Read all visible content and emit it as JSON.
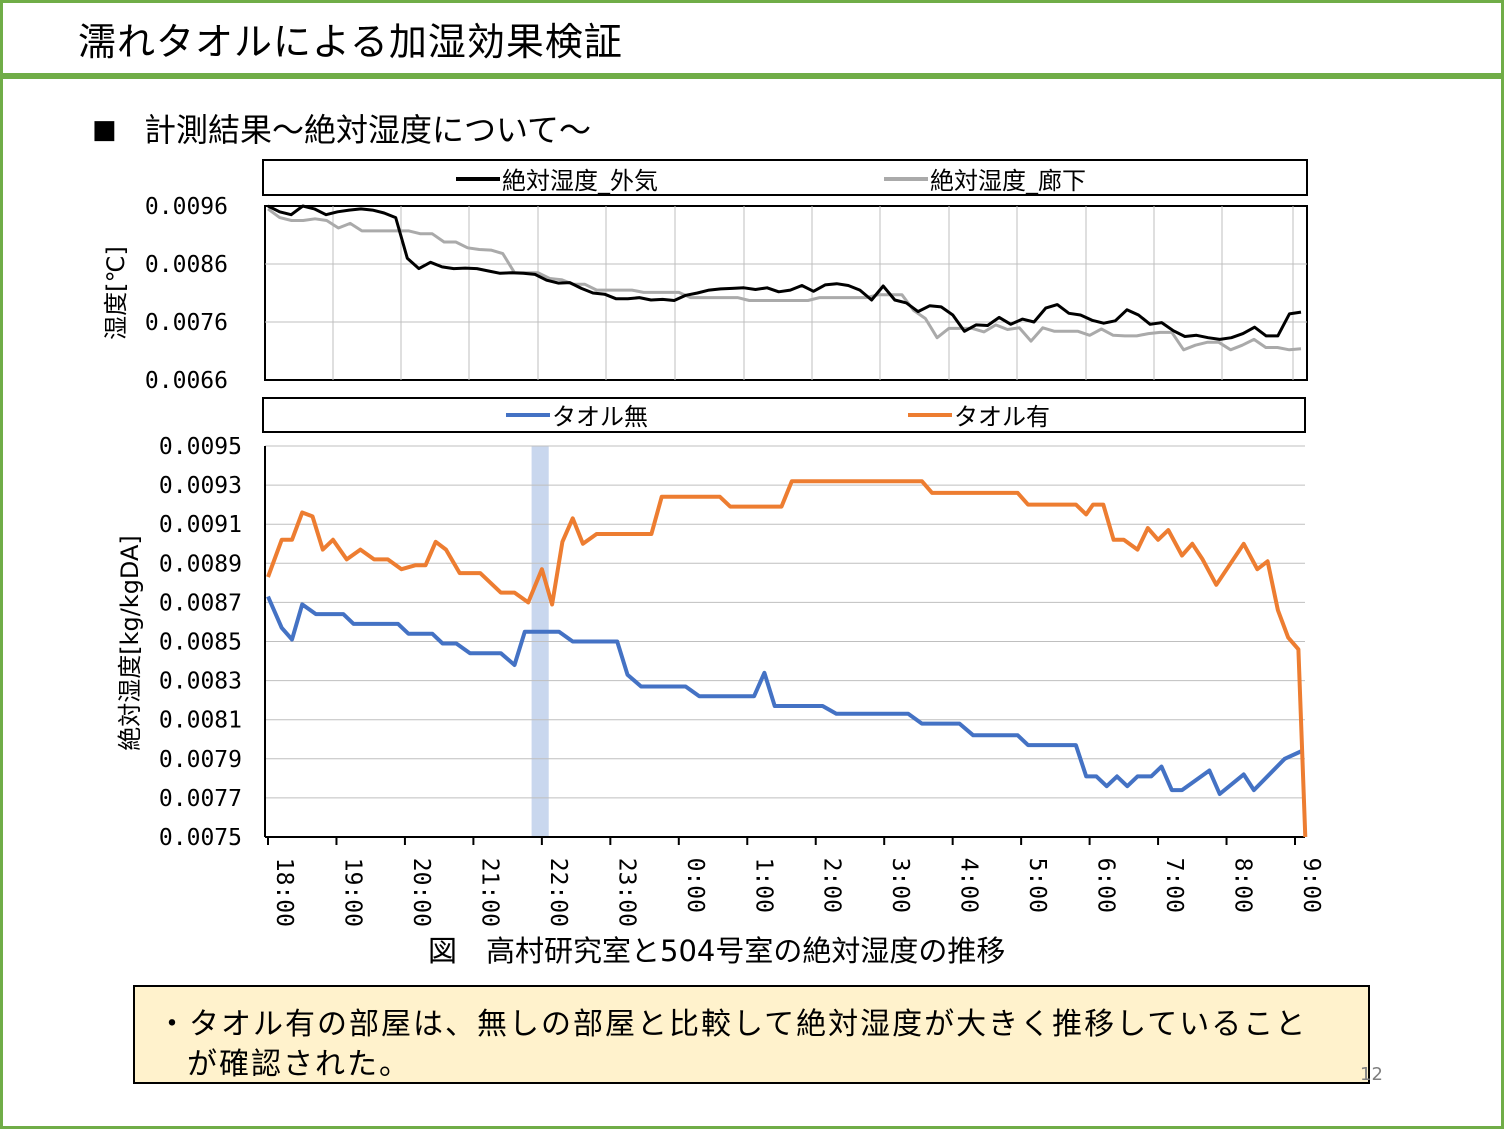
{
  "title": "濡れタオルによる加湿効果検証",
  "heading": "計測結果～絶対湿度について～",
  "heading_bullet": "■",
  "caption": "図　高村研究室と504号室の絶対湿度の推移",
  "note": {
    "line1": "・タオル有の部屋は、無しの部屋と比較して絶対湿度が大きく推移していること",
    "line2": "が確認された。"
  },
  "page_number": "12",
  "colors": {
    "frame": "#70ad47",
    "outside": "#000000",
    "corridor": "#aaaaaa",
    "no_towel": "#4472c4",
    "towel": "#ed7d31",
    "highlight": "#c9d7ee",
    "note_bg": "#fff2cc"
  },
  "chart_data": [
    {
      "type": "line",
      "ylabel": "湿度[℃]",
      "ylim": [
        0.0066,
        0.0096
      ],
      "yticks": [
        "0.0096",
        "0.0086",
        "0.0076",
        "0.0066"
      ],
      "grid": true,
      "legend_position": "top",
      "series": [
        {
          "name": "絶対湿度_外気",
          "values": [
            0.0096,
            0.0095,
            0.00945,
            0.0096,
            0.00955,
            0.00945,
            0.0095,
            0.00953,
            0.00955,
            0.00953,
            0.00948,
            0.0094,
            0.0087,
            0.00852,
            0.00863,
            0.00855,
            0.00852,
            0.00853,
            0.00852,
            0.00848,
            0.00844,
            0.00845,
            0.00844,
            0.00842,
            0.00832,
            0.00827,
            0.00828,
            0.00818,
            0.0081,
            0.00808,
            0.008,
            0.008,
            0.00802,
            0.00798,
            0.00799,
            0.00797,
            0.00806,
            0.0081,
            0.00815,
            0.00817,
            0.00818,
            0.00819,
            0.00816,
            0.00819,
            0.00812,
            0.00815,
            0.00823,
            0.00813,
            0.00824,
            0.00826,
            0.00823,
            0.00815,
            0.00798,
            0.00822,
            0.00798,
            0.00793,
            0.00778,
            0.00788,
            0.00786,
            0.00772,
            0.00744,
            0.00755,
            0.00754,
            0.00768,
            0.00756,
            0.00765,
            0.0076,
            0.00784,
            0.0079,
            0.00775,
            0.00772,
            0.00763,
            0.00758,
            0.00762,
            0.00781,
            0.00772,
            0.00756,
            0.00759,
            0.00745,
            0.00735,
            0.00737,
            0.00733,
            0.0073,
            0.00733,
            0.0074,
            0.00751,
            0.00736,
            0.00736,
            0.00774,
            0.00777
          ]
        },
        {
          "name": "絶対湿度_廊下",
          "values": [
            0.00955,
            0.0094,
            0.00935,
            0.00935,
            0.00938,
            0.00935,
            0.00922,
            0.0093,
            0.00917,
            0.00917,
            0.00917,
            0.00917,
            0.00917,
            0.00912,
            0.00912,
            0.00898,
            0.00898,
            0.00888,
            0.00885,
            0.00884,
            0.00878,
            0.00845,
            0.00845,
            0.00845,
            0.00835,
            0.00833,
            0.00825,
            0.00825,
            0.00815,
            0.00815,
            0.00815,
            0.00815,
            0.00811,
            0.00811,
            0.00811,
            0.00811,
            0.00802,
            0.00802,
            0.00802,
            0.00802,
            0.00802,
            0.00797,
            0.00797,
            0.00797,
            0.00797,
            0.00797,
            0.00797,
            0.00802,
            0.00802,
            0.00802,
            0.00802,
            0.00802,
            0.00807,
            0.00807,
            0.00807,
            0.0078,
            0.00766,
            0.00733,
            0.00749,
            0.00749,
            0.00749,
            0.00743,
            0.00755,
            0.00747,
            0.0075,
            0.00727,
            0.0075,
            0.00744,
            0.00744,
            0.00744,
            0.00737,
            0.00748,
            0.00737,
            0.00736,
            0.00736,
            0.0074,
            0.00742,
            0.00742,
            0.00712,
            0.0072,
            0.00725,
            0.00725,
            0.00712,
            0.0072,
            0.0073,
            0.00716,
            0.00716,
            0.00712,
            0.00714
          ]
        }
      ]
    },
    {
      "type": "line",
      "ylabel": "絶対湿度[kg/kgDA]",
      "ylim": [
        0.0075,
        0.0095
      ],
      "yticks": [
        "0.0095",
        "0.0093",
        "0.0091",
        "0.0089",
        "0.0087",
        "0.0085",
        "0.0083",
        "0.0081",
        "0.0079",
        "0.0077",
        "0.0075"
      ],
      "categories": [
        "18:00",
        "19:00",
        "20:00",
        "21:00",
        "22:00",
        "23:00",
        "0:00",
        "1:00",
        "2:00",
        "3:00",
        "4:00",
        "5:00",
        "6:00",
        "7:00",
        "8:00",
        "9:00"
      ],
      "x_range_hours": [
        18,
        33
      ],
      "highlight_band_hours": [
        21.85,
        22.1
      ],
      "grid": true,
      "legend_position": "top",
      "series": [
        {
          "name": "タオル無",
          "points": [
            [
              18,
              0.00873
            ],
            [
              18.2,
              0.00857
            ],
            [
              18.35,
              0.00851
            ],
            [
              18.5,
              0.00869
            ],
            [
              18.7,
              0.00864
            ],
            [
              19.1,
              0.00864
            ],
            [
              19.25,
              0.00859
            ],
            [
              19.9,
              0.00859
            ],
            [
              20.05,
              0.00854
            ],
            [
              20.4,
              0.00854
            ],
            [
              20.55,
              0.00849
            ],
            [
              20.75,
              0.00849
            ],
            [
              20.95,
              0.00844
            ],
            [
              21.4,
              0.00844
            ],
            [
              21.6,
              0.00838
            ],
            [
              21.75,
              0.00855
            ],
            [
              22.25,
              0.00855
            ],
            [
              22.45,
              0.0085
            ],
            [
              23.1,
              0.0085
            ],
            [
              23.25,
              0.00833
            ],
            [
              23.45,
              0.00827
            ],
            [
              24.1,
              0.00827
            ],
            [
              24.3,
              0.00822
            ],
            [
              25.1,
              0.00822
            ],
            [
              25.25,
              0.00834
            ],
            [
              25.4,
              0.00817
            ],
            [
              26.1,
              0.00817
            ],
            [
              26.3,
              0.00813
            ],
            [
              27.35,
              0.00813
            ],
            [
              27.55,
              0.00808
            ],
            [
              28.1,
              0.00808
            ],
            [
              28.3,
              0.00802
            ],
            [
              28.95,
              0.00802
            ],
            [
              29.1,
              0.00797
            ],
            [
              29.8,
              0.00797
            ],
            [
              29.95,
              0.00781
            ],
            [
              30.1,
              0.00781
            ],
            [
              30.25,
              0.00776
            ],
            [
              30.4,
              0.00781
            ],
            [
              30.55,
              0.00776
            ],
            [
              30.7,
              0.00781
            ],
            [
              30.9,
              0.00781
            ],
            [
              31.05,
              0.00786
            ],
            [
              31.2,
              0.00774
            ],
            [
              31.35,
              0.00774
            ],
            [
              31.75,
              0.00784
            ],
            [
              31.9,
              0.00772
            ],
            [
              32.25,
              0.00782
            ],
            [
              32.4,
              0.00774
            ],
            [
              32.85,
              0.0079
            ],
            [
              33.1,
              0.00794
            ]
          ]
        },
        {
          "name": "タオル有",
          "points": [
            [
              18,
              0.00883
            ],
            [
              18.2,
              0.00902
            ],
            [
              18.35,
              0.00902
            ],
            [
              18.5,
              0.00916
            ],
            [
              18.65,
              0.00914
            ],
            [
              18.8,
              0.00897
            ],
            [
              18.95,
              0.00902
            ],
            [
              19.15,
              0.00892
            ],
            [
              19.35,
              0.00897
            ],
            [
              19.55,
              0.00892
            ],
            [
              19.75,
              0.00892
            ],
            [
              19.95,
              0.00887
            ],
            [
              20.15,
              0.00889
            ],
            [
              20.3,
              0.00889
            ],
            [
              20.45,
              0.00901
            ],
            [
              20.6,
              0.00897
            ],
            [
              20.8,
              0.00885
            ],
            [
              21.1,
              0.00885
            ],
            [
              21.4,
              0.00875
            ],
            [
              21.6,
              0.00875
            ],
            [
              21.8,
              0.0087
            ],
            [
              22.0,
              0.00887
            ],
            [
              22.15,
              0.00869
            ],
            [
              22.3,
              0.00901
            ],
            [
              22.45,
              0.00913
            ],
            [
              22.6,
              0.009
            ],
            [
              22.8,
              0.00905
            ],
            [
              23.6,
              0.00905
            ],
            [
              23.75,
              0.00924
            ],
            [
              24.6,
              0.00924
            ],
            [
              24.75,
              0.00919
            ],
            [
              25.5,
              0.00919
            ],
            [
              25.65,
              0.00932
            ],
            [
              27.55,
              0.00932
            ],
            [
              27.7,
              0.00926
            ],
            [
              28.95,
              0.00926
            ],
            [
              29.1,
              0.0092
            ],
            [
              29.8,
              0.0092
            ],
            [
              29.95,
              0.00915
            ],
            [
              30.05,
              0.0092
            ],
            [
              30.2,
              0.0092
            ],
            [
              30.35,
              0.00902
            ],
            [
              30.5,
              0.00902
            ],
            [
              30.7,
              0.00897
            ],
            [
              30.85,
              0.00908
            ],
            [
              31.0,
              0.00902
            ],
            [
              31.15,
              0.00907
            ],
            [
              31.35,
              0.00894
            ],
            [
              31.5,
              0.009
            ],
            [
              31.65,
              0.00892
            ],
            [
              31.85,
              0.00879
            ],
            [
              32.25,
              0.009
            ],
            [
              32.45,
              0.00887
            ],
            [
              32.6,
              0.00891
            ],
            [
              32.75,
              0.00866
            ],
            [
              32.9,
              0.00852
            ],
            [
              33.05,
              0.00846
            ],
            [
              33.15,
              0.0075
            ]
          ]
        }
      ]
    }
  ]
}
